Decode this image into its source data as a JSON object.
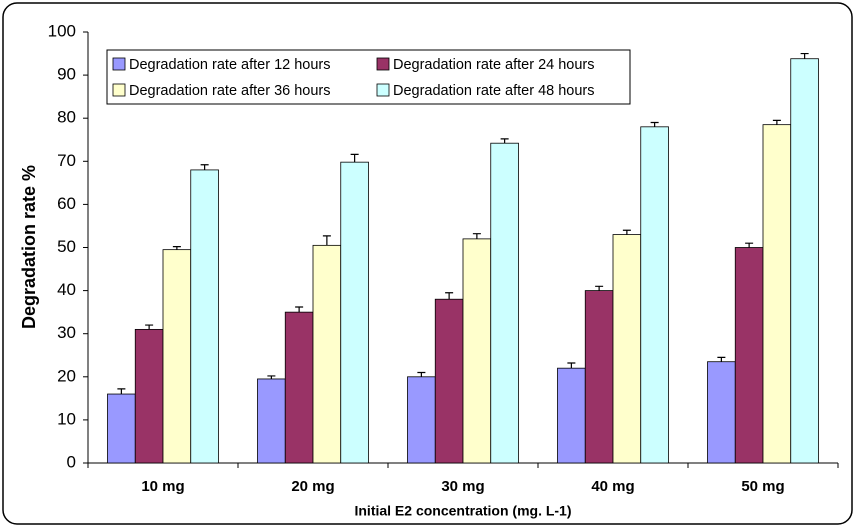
{
  "chart_data": {
    "type": "bar",
    "y_label": "Degradation rate %",
    "x_label": "Initial E2 concentration (mg. L-1)",
    "categories": [
      "10 mg",
      "20 mg",
      "30 mg",
      "40 mg",
      "50 mg"
    ],
    "series": [
      {
        "name": "Degradation rate after 12 hours",
        "color": "#9999ff",
        "values": [
          16,
          19.5,
          20,
          22,
          23.5
        ],
        "errors": [
          1.2,
          0.7,
          1,
          1.2,
          1
        ]
      },
      {
        "name": "Degradation rate after 24 hours",
        "color": "#993366",
        "values": [
          31,
          35,
          38,
          40,
          50
        ],
        "errors": [
          1,
          1.2,
          1.5,
          1,
          1
        ]
      },
      {
        "name": "Degradation rate after 36 hours",
        "color": "#ffffcc",
        "values": [
          49.5,
          50.5,
          52,
          53,
          78.5
        ],
        "errors": [
          0.7,
          2.2,
          1.2,
          1,
          1
        ]
      },
      {
        "name": "Degradation rate after 48 hours",
        "color": "#ccffff",
        "values": [
          68,
          69.8,
          74.2,
          78,
          93.8
        ],
        "errors": [
          1.2,
          1.8,
          1,
          1,
          1.2
        ]
      }
    ],
    "ylim": [
      0,
      100
    ],
    "yticks": [
      0,
      10,
      20,
      30,
      40,
      50,
      60,
      70,
      80,
      90,
      100
    ],
    "grid": false,
    "legend": "top-left"
  }
}
